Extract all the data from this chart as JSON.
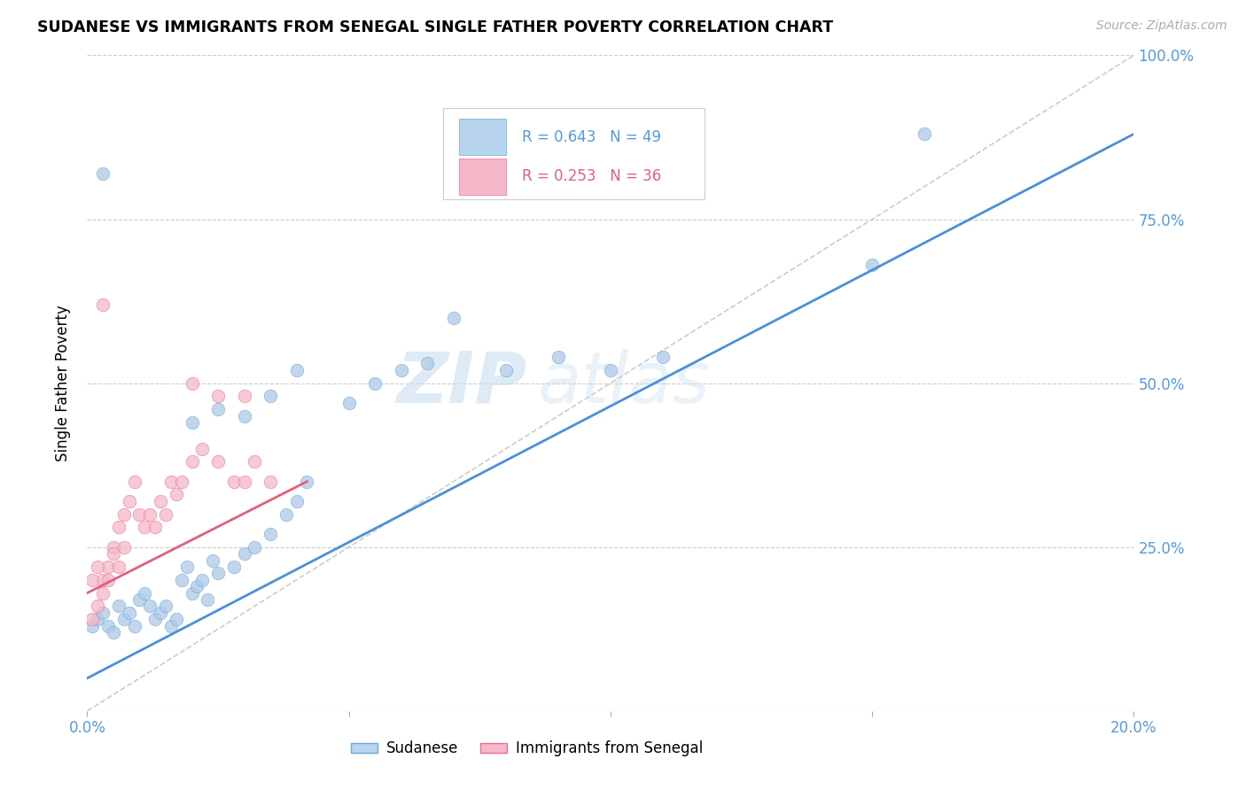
{
  "title": "SUDANESE VS IMMIGRANTS FROM SENEGAL SINGLE FATHER POVERTY CORRELATION CHART",
  "source": "Source: ZipAtlas.com",
  "ylabel": "Single Father Poverty",
  "watermark_zip": "ZIP",
  "watermark_atlas": "atlas",
  "xlim": [
    0.0,
    0.2
  ],
  "ylim": [
    0.0,
    1.0
  ],
  "xticks": [
    0.0,
    0.05,
    0.1,
    0.15,
    0.2
  ],
  "xtick_labels": [
    "0.0%",
    "",
    "",
    "",
    "20.0%"
  ],
  "ytick_labels": [
    "100.0%",
    "75.0%",
    "50.0%",
    "25.0%"
  ],
  "yticks": [
    1.0,
    0.75,
    0.5,
    0.25
  ],
  "blue_R": 0.643,
  "blue_N": 49,
  "pink_R": 0.253,
  "pink_N": 36,
  "blue_color": "#adc9e8",
  "pink_color": "#f5b8c8",
  "blue_edge_color": "#6aaad4",
  "pink_edge_color": "#e87090",
  "blue_line_color": "#4a90d9",
  "pink_line_color": "#e0607a",
  "diag_color": "#cccccc",
  "right_tick_color": "#5599dd",
  "legend_blue_fill": "#b8d4ee",
  "legend_pink_fill": "#f5b8c8",
  "blue_line": [
    0.0,
    0.05,
    0.2,
    0.88
  ],
  "pink_line": [
    0.0,
    0.18,
    0.042,
    0.35
  ],
  "blue_scatter_x": [
    0.001,
    0.002,
    0.003,
    0.004,
    0.005,
    0.006,
    0.007,
    0.008,
    0.009,
    0.01,
    0.011,
    0.012,
    0.013,
    0.014,
    0.015,
    0.016,
    0.017,
    0.018,
    0.019,
    0.02,
    0.021,
    0.022,
    0.023,
    0.024,
    0.025,
    0.028,
    0.03,
    0.032,
    0.035,
    0.038,
    0.04,
    0.042,
    0.05,
    0.055,
    0.06,
    0.065,
    0.07,
    0.08,
    0.09,
    0.1,
    0.11,
    0.02,
    0.025,
    0.03,
    0.035,
    0.04,
    0.15,
    0.16,
    0.003
  ],
  "blue_scatter_y": [
    0.13,
    0.14,
    0.15,
    0.13,
    0.12,
    0.16,
    0.14,
    0.15,
    0.13,
    0.17,
    0.18,
    0.16,
    0.14,
    0.15,
    0.16,
    0.13,
    0.14,
    0.2,
    0.22,
    0.18,
    0.19,
    0.2,
    0.17,
    0.23,
    0.21,
    0.22,
    0.24,
    0.25,
    0.27,
    0.3,
    0.32,
    0.35,
    0.47,
    0.5,
    0.52,
    0.53,
    0.6,
    0.52,
    0.54,
    0.52,
    0.54,
    0.44,
    0.46,
    0.45,
    0.48,
    0.52,
    0.68,
    0.88,
    0.82
  ],
  "pink_scatter_x": [
    0.001,
    0.002,
    0.003,
    0.004,
    0.005,
    0.006,
    0.007,
    0.008,
    0.009,
    0.01,
    0.011,
    0.012,
    0.013,
    0.014,
    0.015,
    0.016,
    0.017,
    0.018,
    0.02,
    0.022,
    0.025,
    0.028,
    0.03,
    0.032,
    0.035,
    0.001,
    0.002,
    0.003,
    0.004,
    0.005,
    0.006,
    0.007,
    0.02,
    0.025,
    0.03,
    0.003
  ],
  "pink_scatter_y": [
    0.14,
    0.16,
    0.2,
    0.22,
    0.25,
    0.28,
    0.3,
    0.32,
    0.35,
    0.3,
    0.28,
    0.3,
    0.28,
    0.32,
    0.3,
    0.35,
    0.33,
    0.35,
    0.38,
    0.4,
    0.38,
    0.35,
    0.35,
    0.38,
    0.35,
    0.2,
    0.22,
    0.18,
    0.2,
    0.24,
    0.22,
    0.25,
    0.5,
    0.48,
    0.48,
    0.62
  ]
}
